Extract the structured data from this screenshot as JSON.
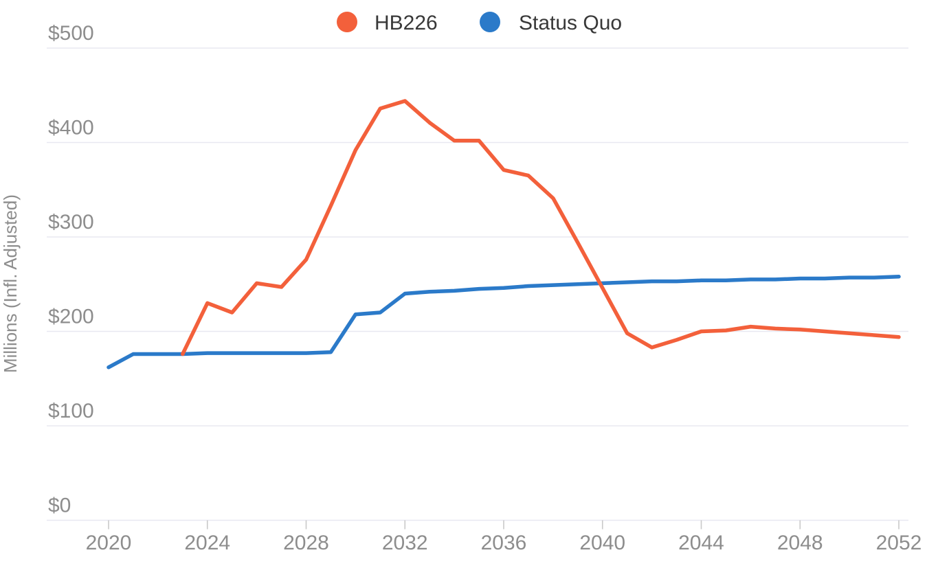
{
  "chart_data": {
    "type": "line",
    "title": "",
    "ylabel": "Millions (Infl. Adjusted)",
    "xlabel": "",
    "legend_position": "top",
    "grid": true,
    "ylim": [
      0,
      500
    ],
    "xlim": [
      2020,
      2052
    ],
    "y_ticks": [
      {
        "label": "$500",
        "value": 500
      },
      {
        "label": "$400",
        "value": 400
      },
      {
        "label": "$300",
        "value": 300
      },
      {
        "label": "$200",
        "value": 200
      },
      {
        "label": "$100",
        "value": 100
      },
      {
        "label": "$0",
        "value": 0
      }
    ],
    "x_ticks": [
      {
        "label": "2020",
        "year": 2020
      },
      {
        "label": "2024",
        "year": 2024
      },
      {
        "label": "2028",
        "year": 2028
      },
      {
        "label": "2032",
        "year": 2032
      },
      {
        "label": "2036",
        "year": 2036
      },
      {
        "label": "2040",
        "year": 2040
      },
      {
        "label": "2044",
        "year": 2044
      },
      {
        "label": "2048",
        "year": 2048
      },
      {
        "label": "2052",
        "year": 2052
      }
    ],
    "x": [
      2020,
      2021,
      2022,
      2023,
      2024,
      2025,
      2026,
      2027,
      2028,
      2029,
      2030,
      2031,
      2032,
      2033,
      2034,
      2035,
      2036,
      2037,
      2038,
      2039,
      2040,
      2041,
      2042,
      2043,
      2044,
      2045,
      2046,
      2047,
      2048,
      2049,
      2050,
      2051,
      2052
    ],
    "series": [
      {
        "name": "Status Quo",
        "color": "#2b7ac9",
        "values": [
          162,
          176,
          176,
          176,
          177,
          177,
          177,
          177,
          177,
          178,
          218,
          220,
          240,
          242,
          243,
          245,
          246,
          248,
          249,
          250,
          251,
          252,
          253,
          253,
          254,
          254,
          255,
          255,
          256,
          256,
          257,
          257,
          258
        ]
      },
      {
        "name": "HB226",
        "color": "#f3603b",
        "values": [
          null,
          null,
          null,
          176,
          230,
          220,
          251,
          247,
          276,
          333,
          392,
          436,
          444,
          421,
          402,
          402,
          371,
          365,
          341,
          294,
          246,
          198,
          183,
          191,
          200,
          201,
          205,
          203,
          202,
          200,
          198,
          196,
          194
        ]
      }
    ],
    "colors": {
      "gridline": "#e8e8f1",
      "axis_tick": "#c9c9c9",
      "tick_label": "#8d8d8d",
      "axis_title": "#8d8d8d",
      "legend_text": "#383838"
    }
  },
  "legend": {
    "items": [
      {
        "label": "HB226"
      },
      {
        "label": "Status Quo"
      }
    ]
  }
}
